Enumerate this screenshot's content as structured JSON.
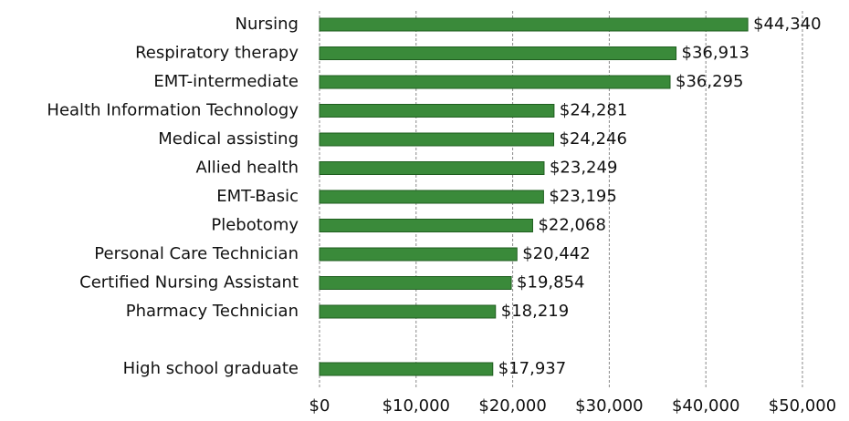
{
  "chart_data": {
    "type": "bar",
    "orientation": "horizontal",
    "categories": [
      "Nursing",
      "Respiratory therapy",
      "EMT-intermediate",
      "Health Information Technology",
      "Medical assisting",
      "Allied health",
      "EMT-Basic",
      "Plebotomy",
      "Personal Care Technician",
      "Certified Nursing Assistant",
      "Pharmacy Technician",
      null,
      "High school graduate"
    ],
    "values": [
      44340,
      36913,
      36295,
      24281,
      24246,
      23249,
      23195,
      22068,
      20442,
      19854,
      18219,
      null,
      17937
    ],
    "value_labels": [
      "$44,340",
      "$36,913",
      "$36,295",
      "$24,281",
      "$24,246",
      "$23,249",
      "$23,195",
      "$22,068",
      "$20,442",
      "$19,854",
      "$18,219",
      null,
      "$17,937"
    ],
    "color": "#3a8a3a",
    "xlim": [
      0,
      50000
    ],
    "xticks": [
      {
        "value": 0,
        "label": "$0"
      },
      {
        "value": 10000,
        "label": "$10,000"
      },
      {
        "value": 20000,
        "label": "$20,000"
      },
      {
        "value": 30000,
        "label": "$30,000"
      },
      {
        "value": 40000,
        "label": "$40,000"
      },
      {
        "value": 50000,
        "label": "$50,000"
      }
    ],
    "grid": true
  }
}
